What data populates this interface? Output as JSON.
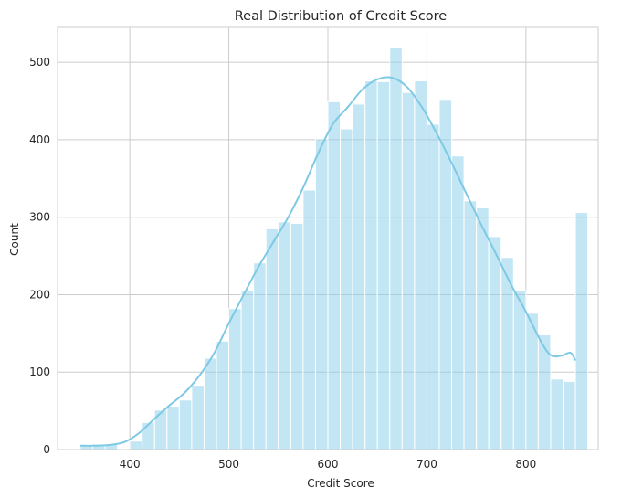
{
  "chart_data": {
    "type": "bar",
    "title": "Real Distribution of Credit Score",
    "xlabel": "Credit Score",
    "ylabel": "Count",
    "xlim": [
      327,
      873
    ],
    "ylim": [
      0,
      545
    ],
    "grid": true,
    "bar_color": "#87ceeb",
    "kde_color": "#7ec9e3",
    "grid_color": "#cccccc",
    "x_ticks": [
      400,
      500,
      600,
      700,
      800
    ],
    "y_ticks": [
      0,
      100,
      200,
      300,
      400,
      500
    ],
    "bin_start": 350,
    "bin_width": 12.5,
    "values": [
      5,
      7,
      7,
      0,
      11,
      35,
      51,
      56,
      64,
      83,
      118,
      140,
      182,
      206,
      241,
      285,
      294,
      292,
      335,
      401,
      449,
      414,
      446,
      476,
      475,
      519,
      461,
      476,
      420,
      452,
      379,
      321,
      312,
      275,
      248,
      205,
      176,
      148,
      91,
      88,
      306
    ],
    "kde": {
      "x": [
        350,
        365,
        380,
        395,
        410,
        425,
        440,
        455,
        470,
        485,
        500,
        515,
        530,
        545,
        560,
        575,
        590,
        605,
        620,
        635,
        650,
        665,
        680,
        695,
        710,
        725,
        740,
        755,
        770,
        785,
        800,
        815,
        825,
        835,
        845,
        850
      ],
      "y": [
        5,
        5,
        6,
        10,
        22,
        40,
        57,
        73,
        95,
        124,
        163,
        200,
        236,
        268,
        300,
        338,
        382,
        420,
        442,
        465,
        478,
        480,
        468,
        442,
        408,
        370,
        330,
        290,
        252,
        213,
        178,
        140,
        122,
        121,
        125,
        115
      ]
    }
  }
}
